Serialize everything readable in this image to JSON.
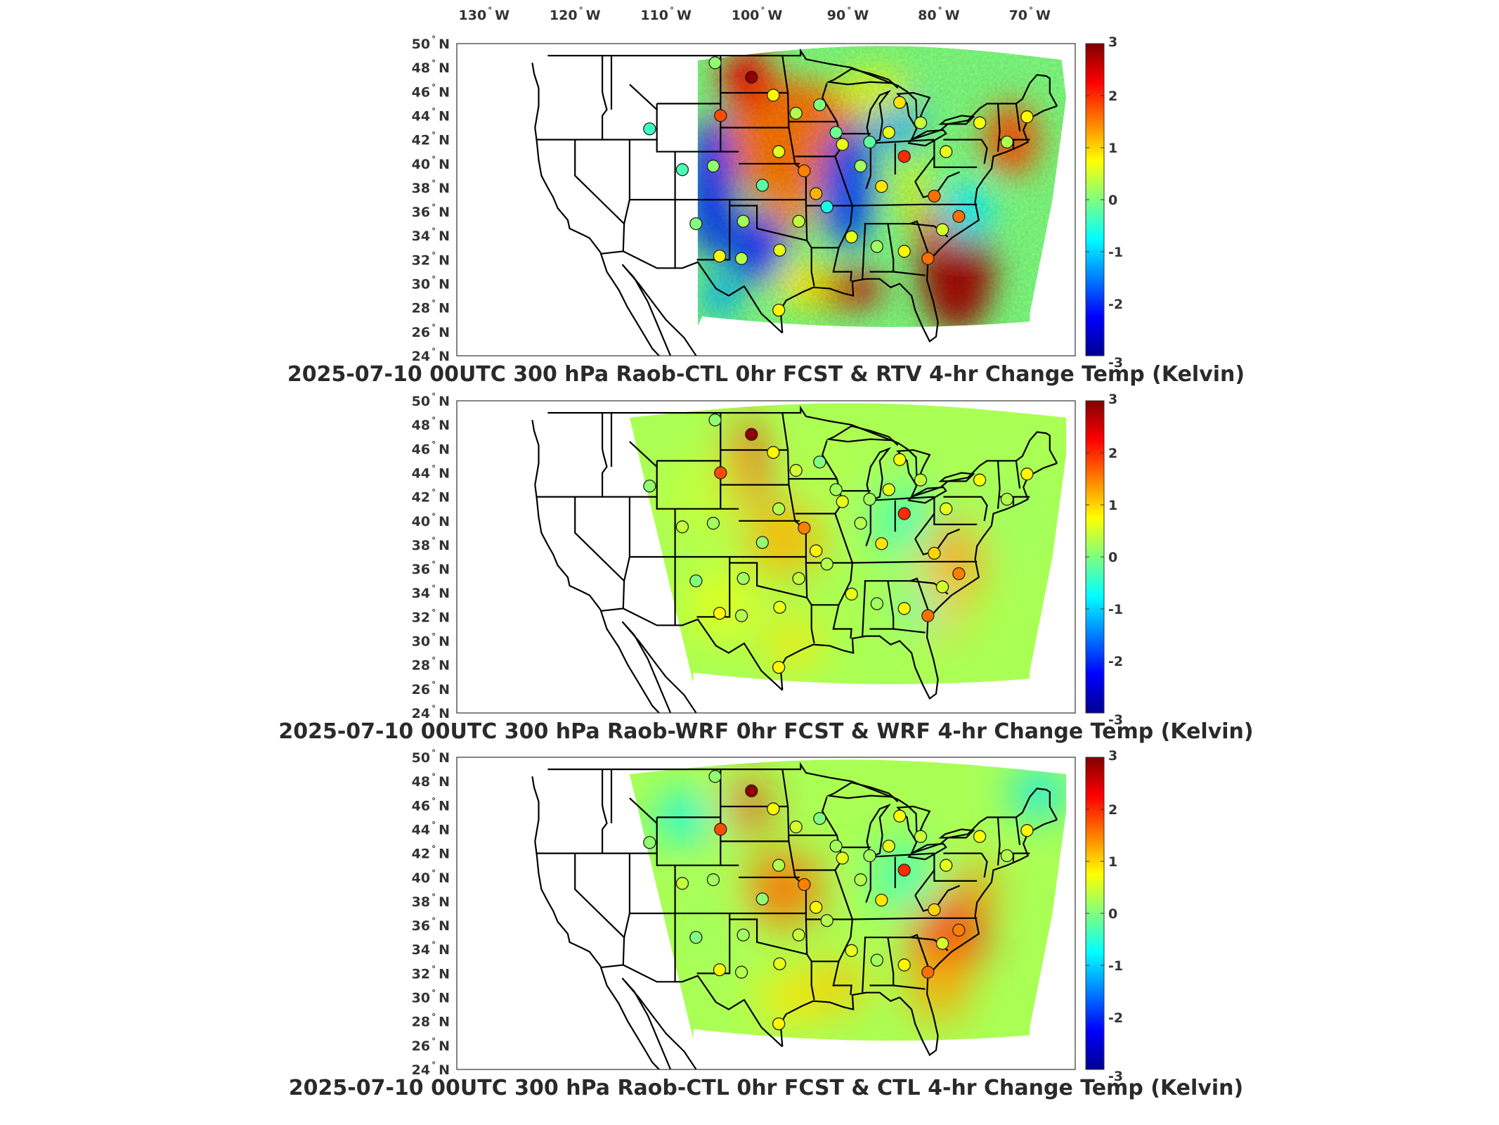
{
  "longitude_labels": [
    "130",
    "120",
    "110",
    "100",
    "90",
    "80",
    "70"
  ],
  "longitude_hemisphere": "W",
  "latitude_labels": [
    "50",
    "48",
    "46",
    "44",
    "42",
    "40",
    "38",
    "36",
    "34",
    "32",
    "30",
    "28",
    "26",
    "24"
  ],
  "latitude_hemisphere": "N",
  "degree_symbol": "°",
  "colorbar": {
    "ticks": [
      "3",
      "2",
      "1",
      "0",
      "-1",
      "-2",
      "-3"
    ],
    "range": [
      -3,
      3
    ],
    "colormap": "jet"
  },
  "panels": [
    {
      "title": "2025-07-10 00UTC 300 hPa Raob-CTL 0hr FCST & RTV 4-hr Change Temp (Kelvin)",
      "field_pattern": "RTV",
      "domain_coverage": "central-east (from ~106W)",
      "station_values": [
        0.1,
        2.9,
        1.8,
        0.8,
        -0.4,
        -0.3,
        0.1,
        -0.2,
        0.6,
        0.0,
        0.3,
        -0.1,
        1.5,
        1.2,
        0.6,
        -0.2,
        0.2,
        0.9,
        0.6,
        2.0,
        0.9,
        0.4,
        1.6,
        0.6,
        0.7,
        0.3,
        0.8,
        -0.6,
        0.6,
        0.2,
        0.8,
        0.4,
        0.6,
        0.3,
        0.2,
        0.0,
        0.8,
        1.6,
        0.5,
        1.6,
        0.8
      ]
    },
    {
      "title": "2025-07-10 00UTC 300 hPa Raob-WRF 0hr FCST & WRF 4-hr Change Temp (Kelvin)",
      "field_pattern": "WRF",
      "domain_coverage": "full WRF domain (from ~114W)",
      "station_values": [
        0.1,
        2.9,
        1.8,
        0.8,
        0.1,
        0.4,
        0.2,
        0.1,
        0.3,
        0.0,
        0.5,
        0.2,
        1.5,
        0.8,
        0.6,
        0.2,
        0.3,
        0.9,
        0.6,
        2.0,
        0.7,
        0.4,
        1.0,
        0.6,
        0.7,
        0.3,
        0.8,
        0.3,
        0.6,
        0.2,
        0.8,
        0.4,
        0.6,
        0.3,
        0.2,
        0.0,
        0.8,
        1.6,
        0.5,
        1.5,
        0.8
      ]
    },
    {
      "title": "2025-07-10 00UTC 300 hPa Raob-CTL 0hr FCST & CTL 4-hr Change Temp (Kelvin)",
      "field_pattern": "CTL",
      "domain_coverage": "full WRF domain (from ~114W)",
      "station_values": [
        0.1,
        2.9,
        1.8,
        0.8,
        0.1,
        0.4,
        0.2,
        0.1,
        0.3,
        0.0,
        0.5,
        0.2,
        1.5,
        0.8,
        0.6,
        0.2,
        0.3,
        0.9,
        0.6,
        2.0,
        0.7,
        0.4,
        1.0,
        0.6,
        0.7,
        0.3,
        0.8,
        0.3,
        0.6,
        0.2,
        0.8,
        0.4,
        0.6,
        0.3,
        0.2,
        0.0,
        0.8,
        1.6,
        0.5,
        1.5,
        0.8
      ]
    }
  ],
  "station_locations": [
    [
      -104.6,
      48.4
    ],
    [
      -100.6,
      47.2
    ],
    [
      -104.0,
      44.0
    ],
    [
      -98.2,
      45.7
    ],
    [
      -111.8,
      42.9
    ],
    [
      -108.2,
      39.5
    ],
    [
      -104.8,
      39.8
    ],
    [
      -99.4,
      38.2
    ],
    [
      -97.6,
      41.0
    ],
    [
      -93.1,
      44.9
    ],
    [
      -95.7,
      44.2
    ],
    [
      -91.3,
      42.6
    ],
    [
      -94.8,
      39.4
    ],
    [
      -93.5,
      37.5
    ],
    [
      -90.6,
      41.6
    ],
    [
      -87.6,
      41.8
    ],
    [
      -88.6,
      39.8
    ],
    [
      -86.3,
      38.1
    ],
    [
      -85.5,
      42.6
    ],
    [
      -83.8,
      40.6
    ],
    [
      -84.3,
      45.1
    ],
    [
      -82.0,
      43.4
    ],
    [
      -80.5,
      37.3
    ],
    [
      -79.2,
      41.0
    ],
    [
      -75.5,
      43.4
    ],
    [
      -72.5,
      41.8
    ],
    [
      -70.3,
      43.9
    ],
    [
      -92.3,
      36.4
    ],
    [
      -89.6,
      33.9
    ],
    [
      -86.8,
      33.1
    ],
    [
      -83.8,
      32.7
    ],
    [
      -95.4,
      35.2
    ],
    [
      -97.5,
      32.8
    ],
    [
      -101.7,
      32.1
    ],
    [
      -101.5,
      35.2
    ],
    [
      -106.7,
      35.0
    ],
    [
      -104.1,
      32.3
    ],
    [
      -81.2,
      32.1
    ],
    [
      -79.6,
      34.5
    ],
    [
      -77.8,
      35.6
    ],
    [
      -97.6,
      27.8
    ]
  ]
}
